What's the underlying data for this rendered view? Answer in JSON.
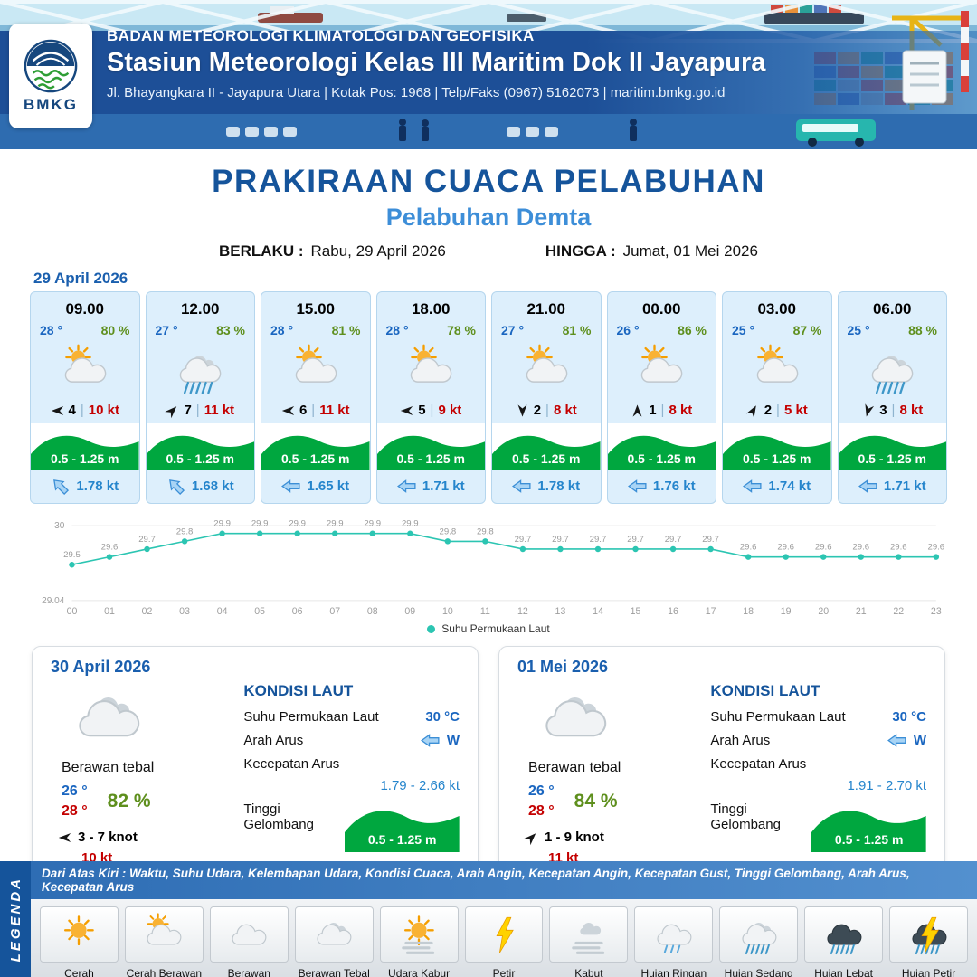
{
  "header": {
    "agency": "BADAN METEOROLOGI KLIMATOLOGI DAN GEOFISIKA",
    "station": "Stasiun Meteorologi Kelas III Maritim Dok II Jayapura",
    "address": "Jl. Bhayangkara II - Jayapura Utara | Kotak Pos: 1968 | Telp/Faks (0967) 5162073 | maritim.bmkg.go.id",
    "logo_text": "BMKG"
  },
  "title": {
    "main": "PRAKIRAAN CUACA PELABUHAN",
    "port": "Pelabuhan Demta",
    "berlaku_label": "BERLAKU :",
    "berlaku_value": "Rabu, 29 April 2026",
    "hingga_label": "HINGGA :",
    "hingga_value": "Jumat, 01 Mei 2026"
  },
  "forecast_date": "29 April 2026",
  "hourly": [
    {
      "time": "09.00",
      "temp": "28 °",
      "rh": "80 %",
      "icon": "cerah-berawan",
      "wind_rot": 0,
      "wind": "4",
      "wind_kt": "10 kt",
      "wave": "0.5 - 1.25 m",
      "cur_rot": 45,
      "cur": "1.78 kt"
    },
    {
      "time": "12.00",
      "temp": "27 °",
      "rh": "83 %",
      "icon": "hujan-sedang",
      "wind_rot": 135,
      "wind": "7",
      "wind_kt": "11 kt",
      "wave": "0.5 - 1.25 m",
      "cur_rot": 45,
      "cur": "1.68 kt"
    },
    {
      "time": "15.00",
      "temp": "28 °",
      "rh": "81 %",
      "icon": "cerah-berawan",
      "wind_rot": 0,
      "wind": "6",
      "wind_kt": "11 kt",
      "wave": "0.5 - 1.25 m",
      "cur_rot": 0,
      "cur": "1.65 kt"
    },
    {
      "time": "18.00",
      "temp": "28 °",
      "rh": "78 %",
      "icon": "cerah-berawan",
      "wind_rot": 0,
      "wind": "5",
      "wind_kt": "9 kt",
      "wave": "0.5 - 1.25 m",
      "cur_rot": 0,
      "cur": "1.71 kt"
    },
    {
      "time": "21.00",
      "temp": "27 °",
      "rh": "81 %",
      "icon": "cerah-berawan",
      "wind_rot": -90,
      "wind": "2",
      "wind_kt": "8 kt",
      "wave": "0.5 - 1.25 m",
      "cur_rot": 0,
      "cur": "1.78 kt"
    },
    {
      "time": "00.00",
      "temp": "26 °",
      "rh": "86 %",
      "icon": "cerah-berawan",
      "wind_rot": 90,
      "wind": "1",
      "wind_kt": "8 kt",
      "wave": "0.5 - 1.25 m",
      "cur_rot": 0,
      "cur": "1.76 kt"
    },
    {
      "time": "03.00",
      "temp": "25 °",
      "rh": "87 %",
      "icon": "cerah-berawan",
      "wind_rot": 120,
      "wind": "2",
      "wind_kt": "5 kt",
      "wave": "0.5 - 1.25 m",
      "cur_rot": 0,
      "cur": "1.74 kt"
    },
    {
      "time": "06.00",
      "temp": "25 °",
      "rh": "88 %",
      "icon": "hujan-sedang",
      "wind_rot": -75,
      "wind": "3",
      "wind_kt": "8 kt",
      "wave": "0.5 - 1.25 m",
      "cur_rot": 0,
      "cur": "1.71 kt"
    }
  ],
  "chart_data": {
    "type": "line",
    "x": [
      "00",
      "01",
      "02",
      "03",
      "04",
      "05",
      "06",
      "07",
      "08",
      "09",
      "10",
      "11",
      "12",
      "13",
      "14",
      "15",
      "16",
      "17",
      "18",
      "19",
      "20",
      "21",
      "22",
      "23"
    ],
    "series": [
      {
        "name": "Suhu Permukaan Laut",
        "values": [
          29.5,
          29.6,
          29.7,
          29.8,
          29.9,
          29.9,
          29.9,
          29.9,
          29.9,
          29.9,
          29.8,
          29.8,
          29.7,
          29.7,
          29.7,
          29.7,
          29.7,
          29.7,
          29.6,
          29.6,
          29.6,
          29.6,
          29.6,
          29.6
        ]
      }
    ],
    "ylim": [
      29.04,
      30
    ],
    "color": "#2cc5b2",
    "legend_position": "bottom",
    "grid": "horizontal-minimal"
  },
  "daily": [
    {
      "date": "30 April 2026",
      "icon": "berawan-tebal",
      "cond": "Berawan tebal",
      "tmin": "26 °",
      "tmax": "28 °",
      "rh": "82 %",
      "wind_rot": 0,
      "wind_range": "3 - 7 knot",
      "gust": "10 kt",
      "sea": {
        "title": "KONDISI LAUT",
        "sst_label": "Suhu Permukaan Laut",
        "sst": "30 °C",
        "arah_label": "Arah Arus",
        "arah": "W",
        "arah_rot": 0,
        "kec_label": "Kecepatan Arus",
        "kec": "1.79 -  2.66 kt",
        "gel_label": "Tinggi Gelombang",
        "gel": "0.5 - 1.25 m"
      }
    },
    {
      "date": "01 Mei 2026",
      "icon": "berawan-tebal",
      "cond": "Berawan tebal",
      "tmin": "26 °",
      "tmax": "28 °",
      "rh": "84 %",
      "wind_rot": 135,
      "wind_range": "1  - 9 knot",
      "gust": "11 kt",
      "sea": {
        "title": "KONDISI LAUT",
        "sst_label": "Suhu Permukaan Laut",
        "sst": "30 °C",
        "arah_label": "Arah Arus",
        "arah": "W",
        "arah_rot": 0,
        "kec_label": "Kecepatan Arus",
        "kec": "1.91  - 2.70 kt",
        "gel_label": "Tinggi Gelombang",
        "gel": "0.5 - 1.25 m"
      }
    }
  ],
  "legend": {
    "title": "LEGENDA",
    "desc": "Dari Atas Kiri : Waktu, Suhu Udara, Kelembapan Udara, Kondisi Cuaca, Arah Angin, Kecepatan Angin, Kecepatan Gust, Tinggi Gelombang, Arah Arus, Kecepatan Arus",
    "items": [
      {
        "label": "Cerah",
        "icon": "cerah"
      },
      {
        "label": "Cerah Berawan",
        "icon": "cerah-berawan"
      },
      {
        "label": "Berawan",
        "icon": "berawan"
      },
      {
        "label": "Berawan Tebal",
        "icon": "berawan-tebal"
      },
      {
        "label": "Udara Kabur",
        "icon": "udara-kabur"
      },
      {
        "label": "Petir",
        "icon": "petir"
      },
      {
        "label": "Kabut",
        "icon": "kabut"
      },
      {
        "label": "Hujan Ringan",
        "icon": "hujan-ringan"
      },
      {
        "label": "Hujan Sedang",
        "icon": "hujan-sedang"
      },
      {
        "label": "Hujan Lebat",
        "icon": "hujan-lebat"
      },
      {
        "label": "Hujan Petir",
        "icon": "hujan-petir"
      }
    ]
  }
}
